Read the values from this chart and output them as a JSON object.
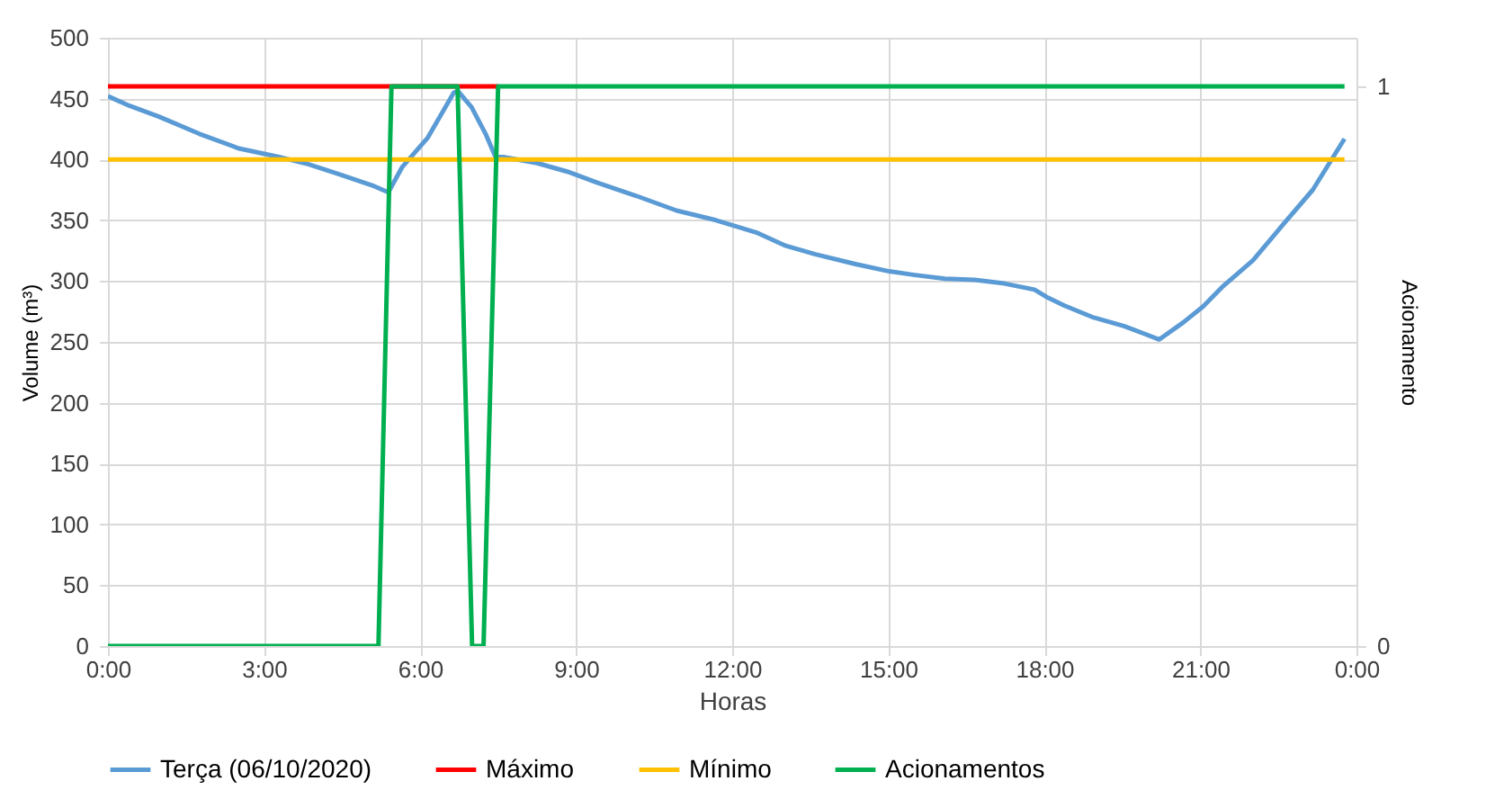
{
  "chart_data": {
    "type": "line",
    "xlabel": "Horas",
    "ylabel": "Volume (m³)",
    "y2label": "Acionamento",
    "xlim": [
      0,
      24
    ],
    "xticks": [
      {
        "value": 0,
        "label": "0:00"
      },
      {
        "value": 3,
        "label": "3:00"
      },
      {
        "value": 6,
        "label": "6:00"
      },
      {
        "value": 9,
        "label": "9:00"
      },
      {
        "value": 12,
        "label": "12:00"
      },
      {
        "value": 15,
        "label": "15:00"
      },
      {
        "value": 18,
        "label": "18:00"
      },
      {
        "value": 21,
        "label": "21:00"
      },
      {
        "value": 24,
        "label": "0:00"
      }
    ],
    "ylim": [
      0,
      500
    ],
    "yticks": [
      0,
      50,
      100,
      150,
      200,
      250,
      300,
      350,
      400,
      450,
      500
    ],
    "y2lim": [
      0,
      1.087
    ],
    "y2ticks": [
      0,
      1
    ],
    "grid": true,
    "legend": "bottom",
    "marker": "none",
    "line_style": "solid",
    "series": [
      {
        "name": "Terça (06/10/2020)",
        "color": "#5b9bd5",
        "x": [
          0,
          0.42,
          0.99,
          1.76,
          2.52,
          3.29,
          3.86,
          4.43,
          5.12,
          5.39,
          5.66,
          6.15,
          6.65,
          6.73,
          6.99,
          7.26,
          7.45,
          7.6,
          8.25,
          8.83,
          9.4,
          10.16,
          10.93,
          11.69,
          12.46,
          13.03,
          13.6,
          14.37,
          15.02,
          15.51,
          16.09,
          16.66,
          17.23,
          17.81,
          18.04,
          18.38,
          18.95,
          19.53,
          20.21,
          20.67,
          21.05,
          21.44,
          22.01,
          22.58,
          23.16,
          23.77
        ],
        "values": [
          452,
          444,
          435,
          421,
          409,
          402,
          396,
          388,
          378,
          373,
          394,
          418,
          455,
          456,
          443,
          421,
          402,
          402,
          397,
          390,
          381,
          370,
          358,
          350,
          340,
          329,
          322,
          314,
          308,
          305,
          302,
          301,
          298,
          293,
          287,
          280,
          270,
          263,
          252,
          266,
          279,
          296,
          317,
          346,
          375,
          417
        ]
      },
      {
        "name": "Máximo",
        "color": "#ff0000",
        "x": [
          0,
          7.5
        ],
        "values": [
          460,
          460
        ]
      },
      {
        "name": "Mínimo",
        "color": "#ffc000",
        "x": [
          0,
          23.77
        ],
        "values": [
          400,
          400
        ]
      },
      {
        "name": "Acionamentos",
        "color": "#00b050",
        "axis": "y2",
        "x": [
          0,
          5.2,
          5.45,
          6.72,
          7.0,
          7.22,
          7.5,
          23.77
        ],
        "values": [
          0,
          0,
          1,
          1,
          0,
          0,
          1,
          1
        ]
      }
    ]
  }
}
